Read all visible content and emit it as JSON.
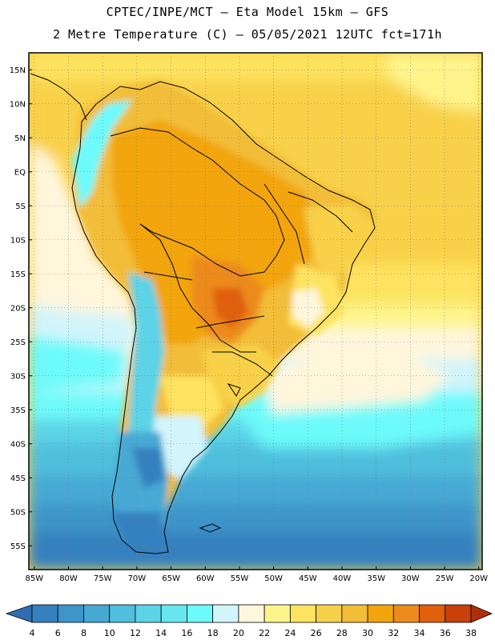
{
  "header": {
    "line1": "CPTEC/INPE/MCT –  Eta Model 15km – GFS",
    "line2": "2 Metre Temperature (C) – 05/05/2021 12UTC fct=171h"
  },
  "map": {
    "lat_labels": [
      "15N",
      "10N",
      "5N",
      "EQ",
      "5S",
      "10S",
      "15S",
      "20S",
      "25S",
      "30S",
      "35S",
      "40S",
      "45S",
      "50S",
      "55S"
    ],
    "lon_labels": [
      "85W",
      "80W",
      "75W",
      "70W",
      "65W",
      "60W",
      "55W",
      "50W",
      "45W",
      "40W",
      "35W",
      "30W",
      "25W",
      "20W"
    ],
    "lat_values": [
      15,
      10,
      5,
      0,
      -5,
      -10,
      -15,
      -20,
      -25,
      -30,
      -35,
      -40,
      -45,
      -50,
      -55
    ],
    "lon_values": [
      -85,
      -80,
      -75,
      -70,
      -65,
      -60,
      -55,
      -50,
      -45,
      -40,
      -35,
      -30,
      -25,
      -20
    ]
  },
  "colorbar": {
    "labels": [
      "4",
      "6",
      "8",
      "10",
      "12",
      "14",
      "16",
      "18",
      "20",
      "22",
      "24",
      "26",
      "28",
      "30",
      "32",
      "34",
      "36",
      "38"
    ],
    "colors": [
      "#2e6eb0",
      "#3581bf",
      "#3d95c9",
      "#46a9d4",
      "#50bedd",
      "#5cd3e7",
      "#66e6ef",
      "#6dfafa",
      "#d2f4fb",
      "#fff6dc",
      "#fff48c",
      "#fde35f",
      "#f8d14a",
      "#f2bd37",
      "#f2a50d",
      "#ec8a1b",
      "#e0600b",
      "#c9400a",
      "#b02f08"
    ]
  },
  "colors": {
    "warm_land": "#f2a520",
    "hot_core": "#e07010",
    "cool_ocean": "#4aa9d6",
    "deep_ocean": "#2e6eb0"
  }
}
